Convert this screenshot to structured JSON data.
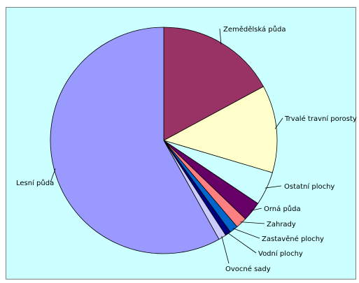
{
  "chart_data": {
    "type": "pie",
    "slices": [
      {
        "label": "Zemědělská půda",
        "value": 17.1,
        "color": "#993366"
      },
      {
        "label": "Trvalé travní porosty",
        "value": 12.5,
        "color": "#ffffcc"
      },
      {
        "label": "Ostatní plochy",
        "value": 4.8,
        "color": "#ccffff"
      },
      {
        "label": "Orná půda",
        "value": 2.8,
        "color": "#660066"
      },
      {
        "label": "Zahrady",
        "value": 1.6,
        "color": "#ff8080"
      },
      {
        "label": "Zastavěné plochy",
        "value": 1.2,
        "color": "#0066cc"
      },
      {
        "label": "Vodní plochy",
        "value": 0.8,
        "color": "#000080"
      },
      {
        "label": "Ovocné sady",
        "value": 1.1,
        "color": "#ccccff"
      },
      {
        "label": "Lesní půda",
        "value": 58.1,
        "color": "#9999ff"
      }
    ],
    "start_angle": "12 o'clock",
    "direction": "clockwise",
    "title": "",
    "legend": "none",
    "labels": "leader lines",
    "background": "#ccffff"
  }
}
